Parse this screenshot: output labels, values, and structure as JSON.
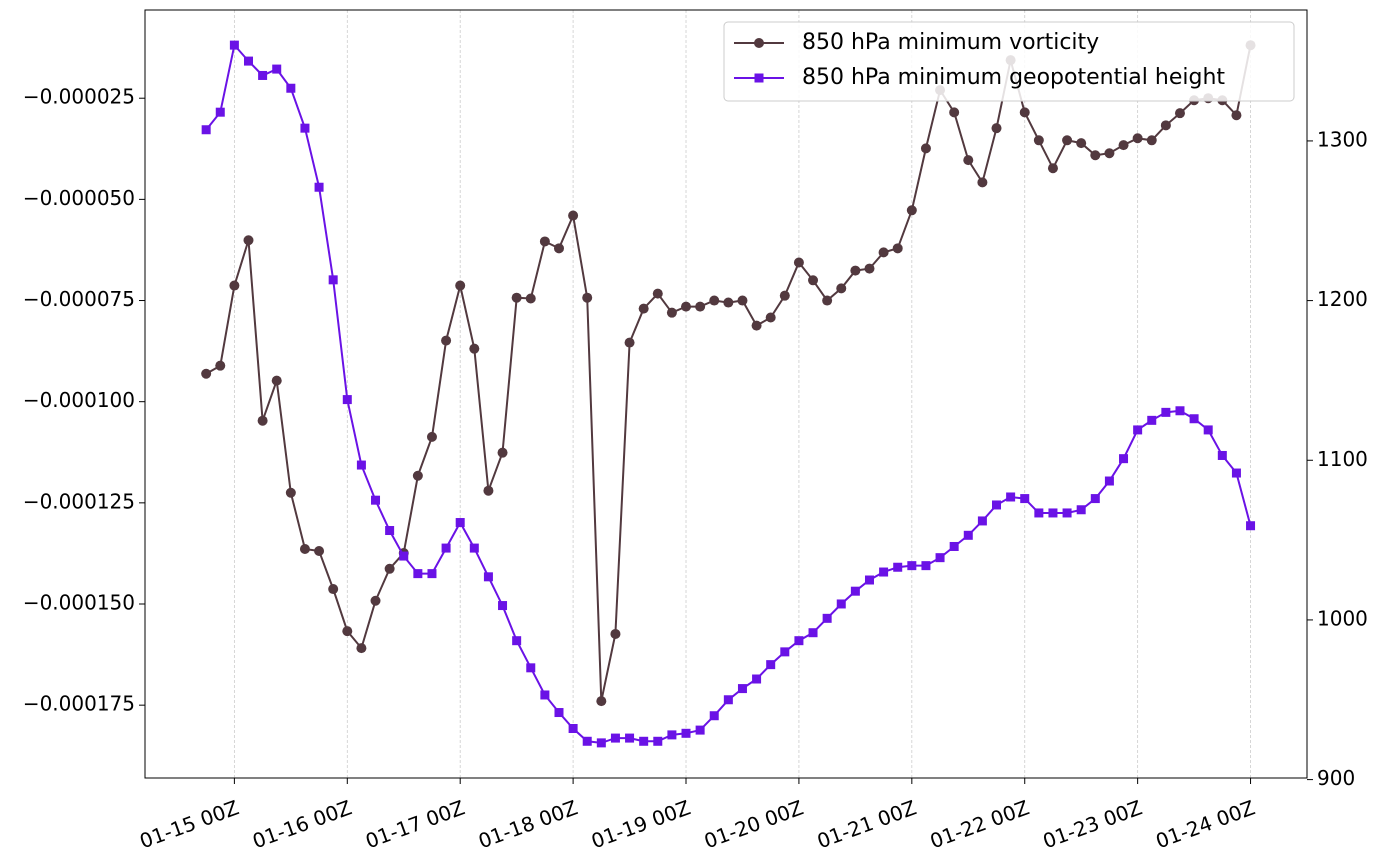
{
  "chart_data": {
    "type": "line",
    "x": [
      "01-14 18Z",
      "01-14 21Z",
      "01-15 00Z",
      "01-15 03Z",
      "01-15 06Z",
      "01-15 09Z",
      "01-15 12Z",
      "01-15 15Z",
      "01-15 18Z",
      "01-15 21Z",
      "01-16 00Z",
      "01-16 03Z",
      "01-16 06Z",
      "01-16 09Z",
      "01-16 12Z",
      "01-16 15Z",
      "01-16 18Z",
      "01-16 21Z",
      "01-17 00Z",
      "01-17 03Z",
      "01-17 06Z",
      "01-17 09Z",
      "01-17 12Z",
      "01-17 15Z",
      "01-17 18Z",
      "01-17 21Z",
      "01-18 00Z",
      "01-18 03Z",
      "01-18 06Z",
      "01-18 09Z",
      "01-18 12Z",
      "01-18 15Z",
      "01-18 18Z",
      "01-18 21Z",
      "01-19 00Z",
      "01-19 03Z",
      "01-19 06Z",
      "01-19 09Z",
      "01-19 12Z",
      "01-19 15Z",
      "01-19 18Z",
      "01-19 21Z",
      "01-20 00Z",
      "01-20 03Z",
      "01-20 06Z",
      "01-20 09Z",
      "01-20 12Z",
      "01-20 15Z",
      "01-20 18Z",
      "01-20 21Z",
      "01-21 00Z",
      "01-21 03Z",
      "01-21 06Z",
      "01-21 09Z",
      "01-21 12Z",
      "01-21 15Z",
      "01-21 18Z",
      "01-21 21Z",
      "01-22 00Z",
      "01-22 03Z",
      "01-22 06Z",
      "01-22 09Z",
      "01-22 12Z",
      "01-22 15Z",
      "01-22 18Z",
      "01-22 21Z",
      "01-23 00Z",
      "01-23 03Z",
      "01-23 06Z",
      "01-23 09Z",
      "01-23 12Z",
      "01-23 15Z",
      "01-23 18Z",
      "01-23 21Z",
      "01-24 00Z"
    ],
    "xlim": [
      "01-14 05Z",
      "01-24 12Z"
    ],
    "xticks": [
      "01-15 00Z",
      "01-16 00Z",
      "01-17 00Z",
      "01-18 00Z",
      "01-19 00Z",
      "01-20 00Z",
      "01-21 00Z",
      "01-22 00Z",
      "01-23 00Z",
      "01-24 00Z"
    ],
    "ylim": [
      -0.000193,
      -3.2e-06
    ],
    "yticks": [
      {
        "value": -0.000175,
        "label": "−0.000175"
      },
      {
        "value": -0.00015,
        "label": "−0.000150"
      },
      {
        "value": -0.000125,
        "label": "−0.000125"
      },
      {
        "value": -0.0001,
        "label": "−0.000100"
      },
      {
        "value": -7.5e-05,
        "label": "−0.000075"
      },
      {
        "value": -5e-05,
        "label": "−0.000050"
      },
      {
        "value": -2.5e-05,
        "label": "−0.000025"
      }
    ],
    "y2lim": [
      901,
      1382
    ],
    "y2ticks": [
      900,
      1000,
      1100,
      1200,
      1300
    ],
    "grid": "x",
    "legend": "upper right",
    "series": [
      {
        "name": "850 hPa minimum vorticity",
        "color": "#52393f",
        "marker": "circle",
        "values": [
          -9.31e-05,
          -9.11e-05,
          -7.13e-05,
          -6.01e-05,
          -0.0001047,
          -9.48e-05,
          -0.0001225,
          -0.0001364,
          -0.0001369,
          -0.0001463,
          -0.0001567,
          -0.0001609,
          -0.0001492,
          -0.0001413,
          -0.0001374,
          -0.0001183,
          -0.0001087,
          -8.49e-05,
          -7.13e-05,
          -8.69e-05,
          -0.000122,
          -0.0001126,
          -7.43e-05,
          -7.45e-05,
          -6.04e-05,
          -6.21e-05,
          -5.4e-05,
          -7.43e-05,
          -0.000174,
          -0.0001574,
          -8.54e-05,
          -7.7e-05,
          -7.33e-05,
          -7.8e-05,
          -7.65e-05,
          -7.65e-05,
          -7.5e-05,
          -7.55e-05,
          -7.5e-05,
          -8.12e-05,
          -7.92e-05,
          -7.38e-05,
          -6.56e-05,
          -7e-05,
          -7.5e-05,
          -7.2e-05,
          -6.76e-05,
          -6.71e-05,
          -6.31e-05,
          -6.21e-05,
          -5.27e-05,
          -3.74e-05,
          -2.3e-05,
          -2.85e-05,
          -4.03e-05,
          -4.58e-05,
          -3.24e-05,
          -1.56e-05,
          -2.85e-05,
          -3.54e-05,
          -4.23e-05,
          -3.54e-05,
          -3.61e-05,
          -3.91e-05,
          -3.86e-05,
          -3.66e-05,
          -3.49e-05,
          -3.54e-05,
          -3.17e-05,
          -2.87e-05,
          -2.55e-05,
          -2.5e-05,
          -2.55e-05,
          -2.92e-05,
          -1.19e-05
        ]
      },
      {
        "name": "850 hPa minimum geopotential height",
        "color": "#6a12e6",
        "marker": "square",
        "axis": "y2",
        "values": [
          1307,
          1318,
          1360,
          1350,
          1341,
          1345,
          1333,
          1308,
          1271,
          1213,
          1138,
          1097,
          1075,
          1056,
          1040,
          1029,
          1029,
          1045,
          1061,
          1045,
          1027,
          1009,
          987,
          970,
          953,
          942,
          932,
          924,
          923,
          926,
          926,
          924,
          924,
          928,
          929,
          931,
          940,
          950,
          957,
          963,
          972,
          980,
          987,
          992,
          1001,
          1010,
          1018,
          1025,
          1030,
          1033,
          1034,
          1034,
          1039,
          1046,
          1053,
          1062,
          1072,
          1077,
          1076,
          1067,
          1067,
          1067,
          1069,
          1076,
          1087,
          1101,
          1119,
          1125,
          1130,
          1131,
          1126,
          1119,
          1103,
          1092,
          1059
        ]
      }
    ]
  }
}
